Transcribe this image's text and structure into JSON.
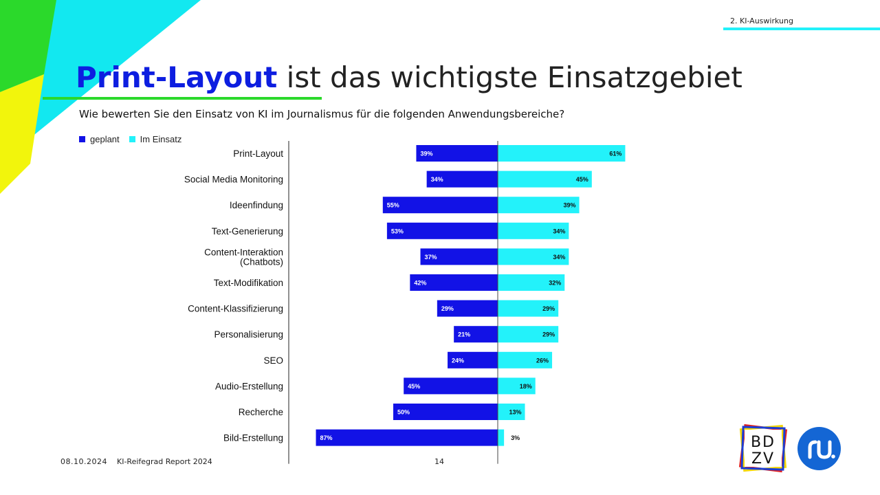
{
  "header": {
    "section_label": "2. KI-Auswirkung",
    "title_strong": "Print-Layout",
    "title_rest": " ist das wichtigste Einsatzgebiet",
    "question": "Wie bewerten Sie den Einsatz von KI im Journalismus für die folgenden Anwendungsbereiche?"
  },
  "footer": {
    "date": "08.10.2024",
    "report": "KI-Reifegrad Report 2024",
    "page": "14"
  },
  "logos": {
    "bdzv_line1": "BD",
    "bdzv_line2": "ZV"
  },
  "colors": {
    "planned": "#1212e6",
    "in_use": "#23f2fa",
    "title_accent": "#0d1ee0",
    "green": "#2bd92b",
    "cyan": "#12e8f0",
    "yellow": "#f2f50c",
    "logo_blue": "#1466d4"
  },
  "chart_data": {
    "type": "bar",
    "orientation": "horizontal-diverging",
    "categories": [
      "Print-Layout",
      "Social Media Monitoring",
      "Ideenfindung",
      "Text-Generierung",
      "Content-Interaktion (Chatbots)",
      "Text-Modifikation",
      "Content-Klassifizierung",
      "Personalisierung",
      "SEO",
      "Audio-Erstellung",
      "Recherche",
      "Bild-Erstellung"
    ],
    "series": [
      {
        "name": "geplant",
        "values": [
          39,
          34,
          55,
          53,
          37,
          42,
          29,
          21,
          24,
          45,
          50,
          87
        ]
      },
      {
        "name": "Im Einsatz",
        "values": [
          61,
          45,
          39,
          34,
          34,
          32,
          29,
          29,
          26,
          18,
          13,
          3
        ]
      }
    ],
    "value_suffix": "%",
    "legend_position": "top-left",
    "grid": false
  }
}
